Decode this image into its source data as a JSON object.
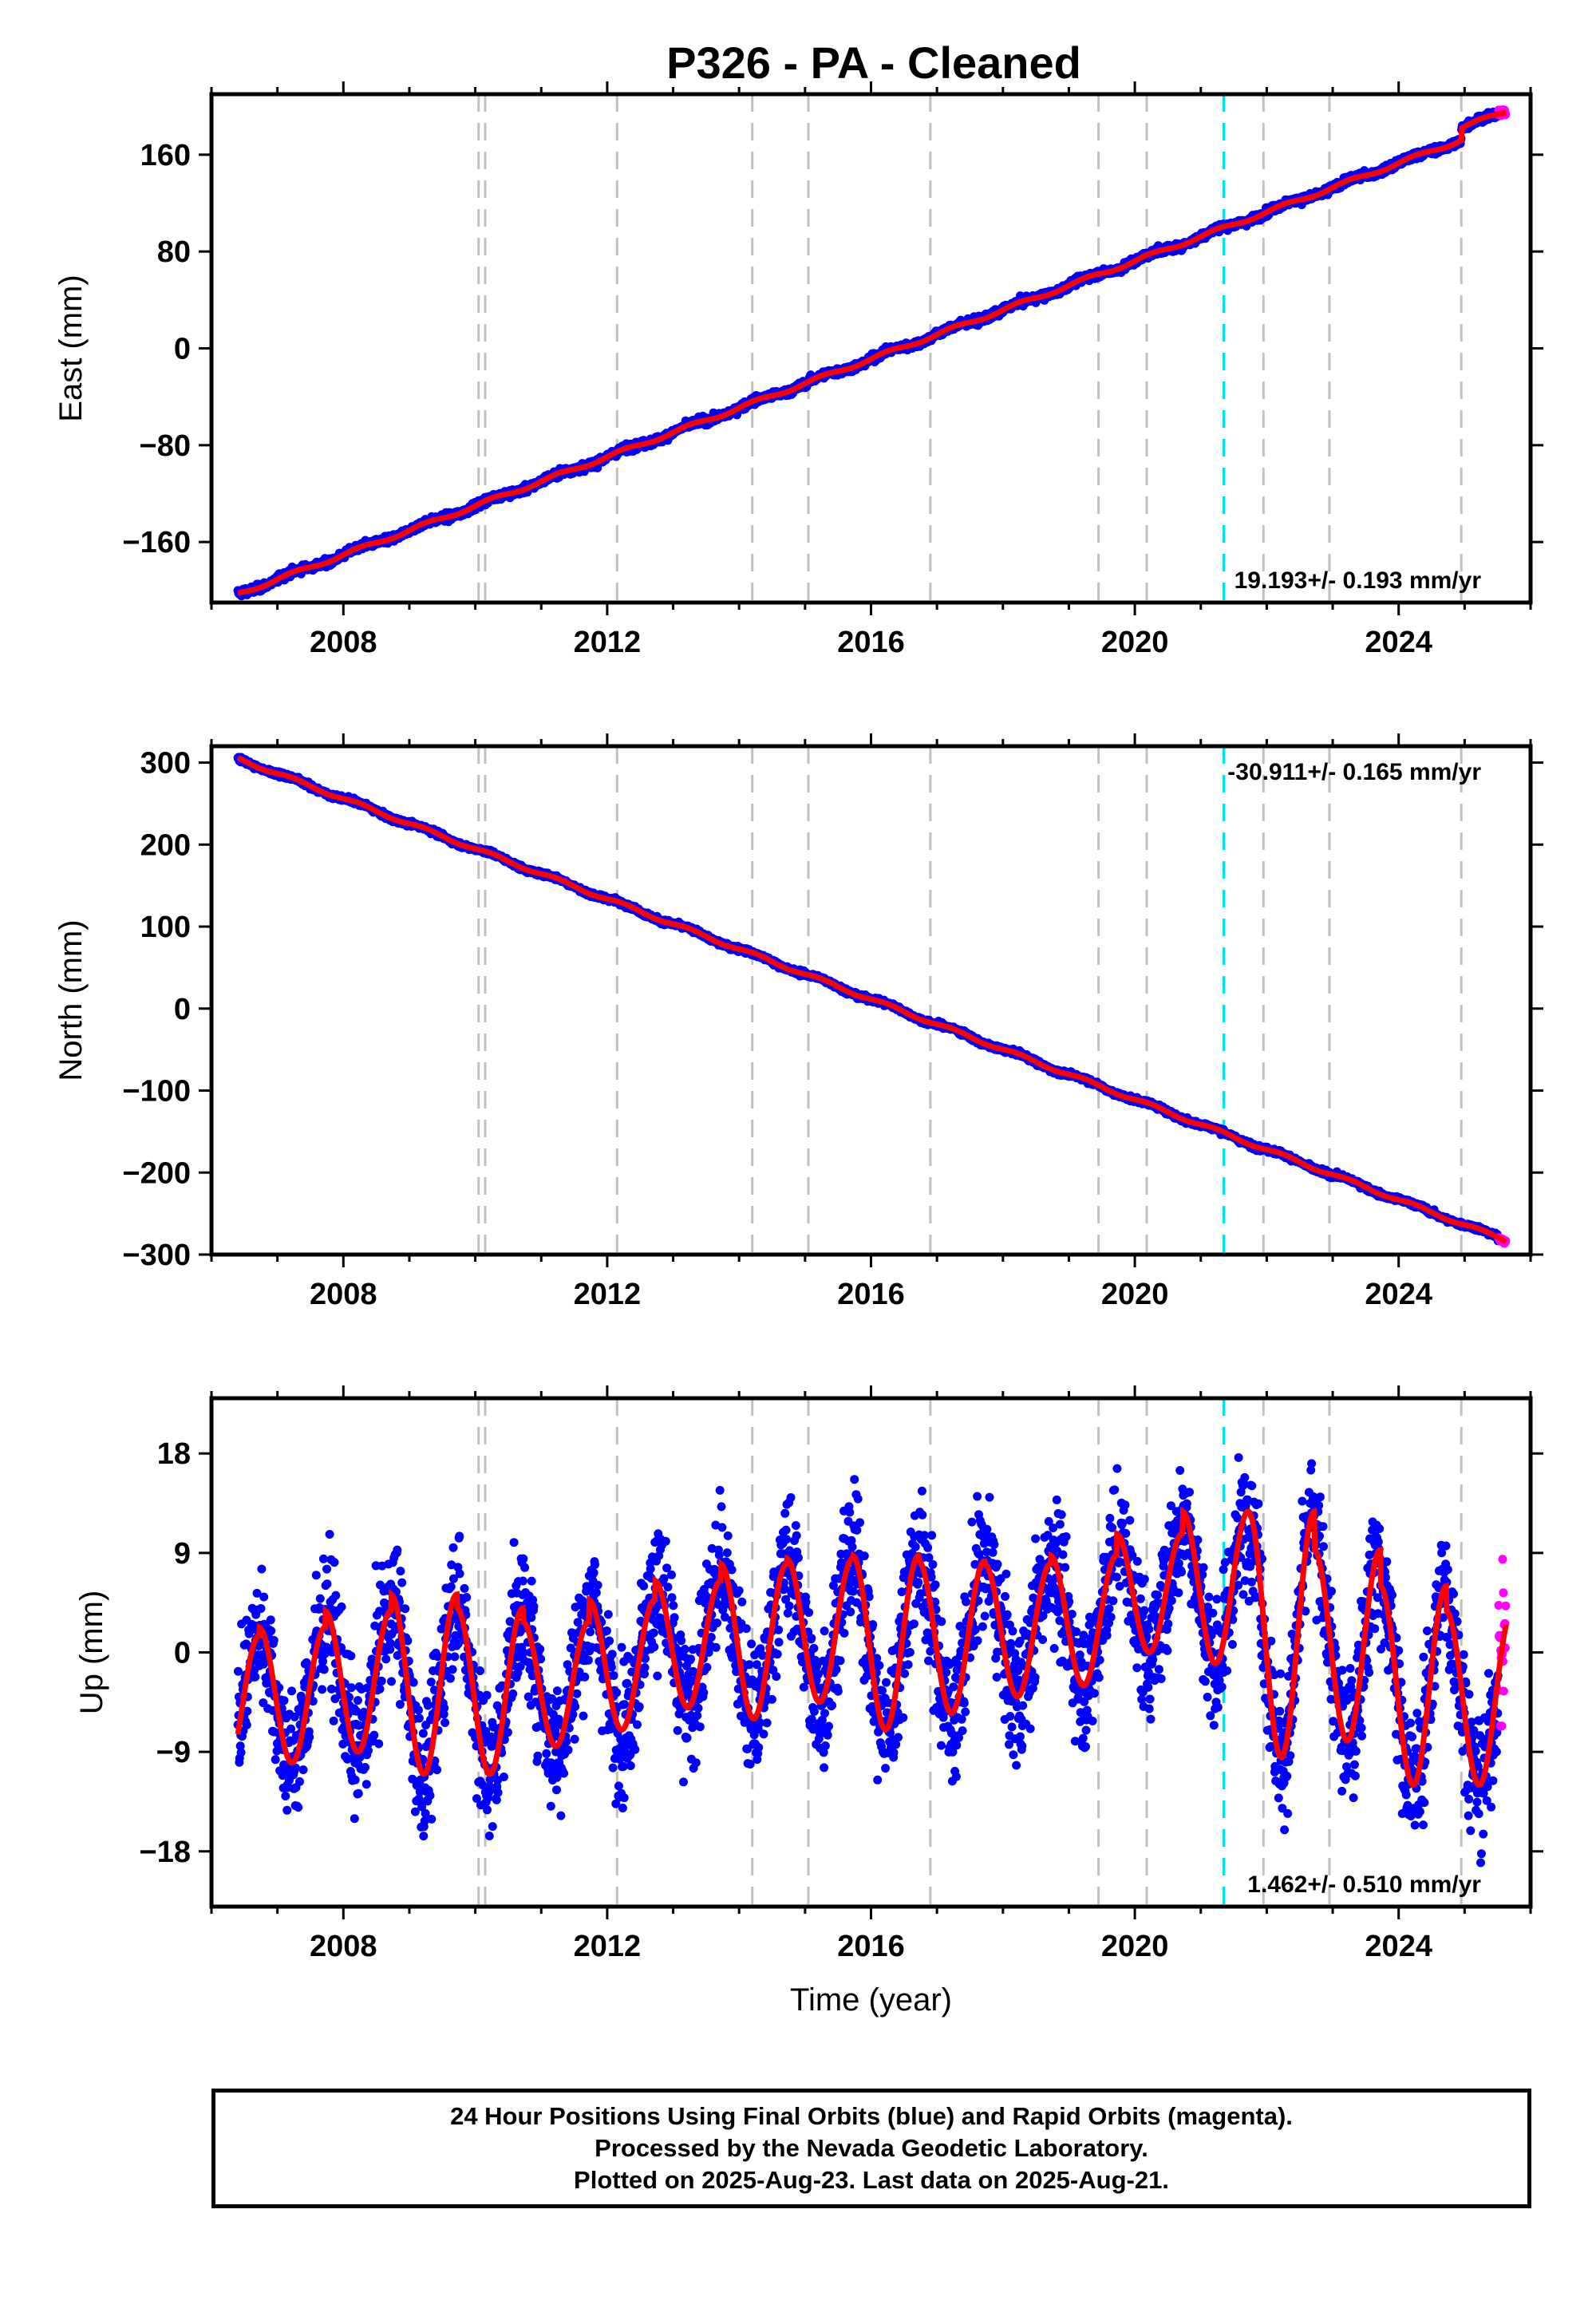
{
  "title": "P326  - PA - Cleaned",
  "footer": {
    "line1": "24 Hour Positions Using Final Orbits (blue) and Rapid Orbits (magenta).",
    "line2": "Processed by the Nevada Geodetic Laboratory.",
    "line3": "Plotted on 2025-Aug-23. Last data on 2025-Aug-21."
  },
  "colors": {
    "final_orbits": "#0000ff",
    "rapid_orbits": "#ff00ff",
    "model": "#ff0000",
    "equipment_change": "#c0c0c0",
    "earthquake": "#00e5e5"
  },
  "chart_data": [
    {
      "type": "scatter",
      "panel": "east",
      "ylabel": "East (mm)",
      "xlabel": "",
      "xlim": [
        2006.0,
        2026.0
      ],
      "ylim": [
        -210,
        210
      ],
      "xticks": [
        2008,
        2012,
        2016,
        2020,
        2024
      ],
      "yticks": [
        -160,
        -80,
        0,
        80,
        160
      ],
      "rate_label": "19.193+/- 0.193 mm/yr",
      "rate_position": "bottom-right",
      "start_year": 2006.4,
      "end_year": 2025.63,
      "start_value": -198,
      "end_value": 191,
      "annual_amplitude": 1.5,
      "offsets": [
        {
          "year": 2024.95,
          "size": 10
        }
      ],
      "grid": false
    },
    {
      "type": "scatter",
      "panel": "north",
      "ylabel": "North (mm)",
      "xlabel": "",
      "xlim": [
        2006.0,
        2026.0
      ],
      "ylim": [
        -300,
        320
      ],
      "xticks": [
        2008,
        2012,
        2016,
        2020,
        2024
      ],
      "yticks": [
        -300,
        -200,
        -100,
        0,
        100,
        200,
        300
      ],
      "rate_label": "-30.911+/- 0.165 mm/yr",
      "rate_position": "top-right",
      "start_year": 2006.4,
      "end_year": 2025.63,
      "start_value": 305,
      "end_value": -283,
      "annual_amplitude": 2.0,
      "offsets": [],
      "grid": false
    },
    {
      "type": "scatter",
      "panel": "up",
      "ylabel": "Up (mm)",
      "xlabel": "Time (year)",
      "xlim": [
        2006.0,
        2026.0
      ],
      "ylim": [
        -23,
        23
      ],
      "xticks": [
        2008,
        2012,
        2016,
        2020,
        2024
      ],
      "yticks": [
        -18,
        -9,
        0,
        9,
        18
      ],
      "rate_label": "1.462+/- 0.510 mm/yr",
      "rate_position": "bottom-right",
      "start_year": 2006.4,
      "end_year": 2025.63,
      "annual_amplitude": 7.5,
      "seasonal_peaks": [
        {
          "year": 2006.72,
          "peak": 1.5,
          "trough": -11
        },
        {
          "year": 2007.72,
          "peak": 3,
          "trough": -10
        },
        {
          "year": 2008.72,
          "peak": 4.5,
          "trough": -9
        },
        {
          "year": 2009.72,
          "peak": 6,
          "trough": -11
        },
        {
          "year": 2010.72,
          "peak": 2,
          "trough": -11
        },
        {
          "year": 2011.72,
          "peak": 3.5,
          "trough": -8.5
        },
        {
          "year": 2012.72,
          "peak": 6,
          "trough": -7
        },
        {
          "year": 2013.72,
          "peak": 7,
          "trough": -5
        },
        {
          "year": 2014.72,
          "peak": 9,
          "trough": -6
        },
        {
          "year": 2015.72,
          "peak": 8,
          "trough": -4.5
        },
        {
          "year": 2016.72,
          "peak": 9.5,
          "trough": -7
        },
        {
          "year": 2017.72,
          "peak": 7,
          "trough": -5.5
        },
        {
          "year": 2018.72,
          "peak": 9,
          "trough": -4
        },
        {
          "year": 2019.72,
          "peak": 8.5,
          "trough": -3
        },
        {
          "year": 2020.72,
          "peak": 13,
          "trough": 0
        },
        {
          "year": 2021.72,
          "peak": 12.5,
          "trough": -1
        },
        {
          "year": 2022.72,
          "peak": 13,
          "trough": -9.5
        },
        {
          "year": 2023.72,
          "peak": 5.5,
          "trough": -8
        },
        {
          "year": 2024.72,
          "peak": 6.5,
          "trough": -12
        },
        {
          "year": 2025.72,
          "peak": 1,
          "trough": -12
        }
      ],
      "grid": false
    }
  ],
  "event_lines": {
    "equipment_changes": [
      2010.05,
      2010.15,
      2012.15,
      2014.2,
      2015.05,
      2016.9,
      2019.45,
      2020.18,
      2021.95,
      2022.95,
      2024.95
    ],
    "earthquakes": [
      2021.35
    ]
  }
}
